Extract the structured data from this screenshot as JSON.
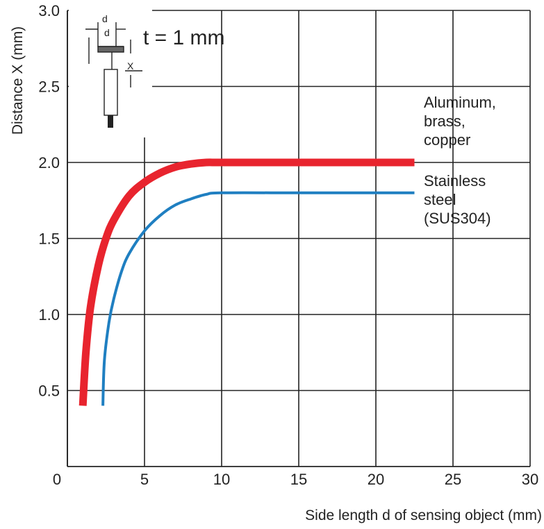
{
  "chart_data": {
    "type": "line",
    "xlabel": "Side length d of sensing object (mm)",
    "ylabel": "Distance X (mm)",
    "xlim": [
      0,
      30
    ],
    "ylim": [
      0,
      3.0
    ],
    "x_ticks": [
      "0",
      "5",
      "10",
      "15",
      "20",
      "25",
      "30"
    ],
    "y_ticks": [
      "0.5",
      "1.0",
      "1.5",
      "2.0",
      "2.5",
      "3.0"
    ],
    "grid": true,
    "annotation": "t = 1 mm",
    "icon_labels": {
      "d_top": "d",
      "d_box": "d",
      "x_label": "X"
    },
    "series": [
      {
        "label_lines": [
          "Aluminum,",
          "brass,",
          "copper"
        ],
        "color": "#e8242e",
        "x": [
          1.0,
          1.2,
          1.5,
          2.0,
          2.5,
          3.0,
          4.0,
          5.0,
          6.0,
          7.0,
          8.0,
          9.0,
          10.0,
          15.0,
          20.0,
          22.5
        ],
        "y": [
          0.4,
          0.75,
          1.05,
          1.32,
          1.5,
          1.62,
          1.78,
          1.87,
          1.93,
          1.97,
          1.99,
          2.0,
          2.0,
          2.0,
          2.0,
          2.0
        ]
      },
      {
        "label_lines": [
          "Stainless",
          "steel",
          "(SUS304)"
        ],
        "color": "#1f7fc1",
        "x": [
          2.3,
          2.4,
          2.7,
          3.0,
          3.5,
          4.0,
          5.0,
          6.0,
          7.0,
          8.0,
          9.0,
          10.0,
          15.0,
          20.0,
          22.5
        ],
        "y": [
          0.4,
          0.7,
          0.95,
          1.1,
          1.28,
          1.4,
          1.55,
          1.65,
          1.72,
          1.76,
          1.79,
          1.8,
          1.8,
          1.8,
          1.8
        ]
      }
    ]
  }
}
